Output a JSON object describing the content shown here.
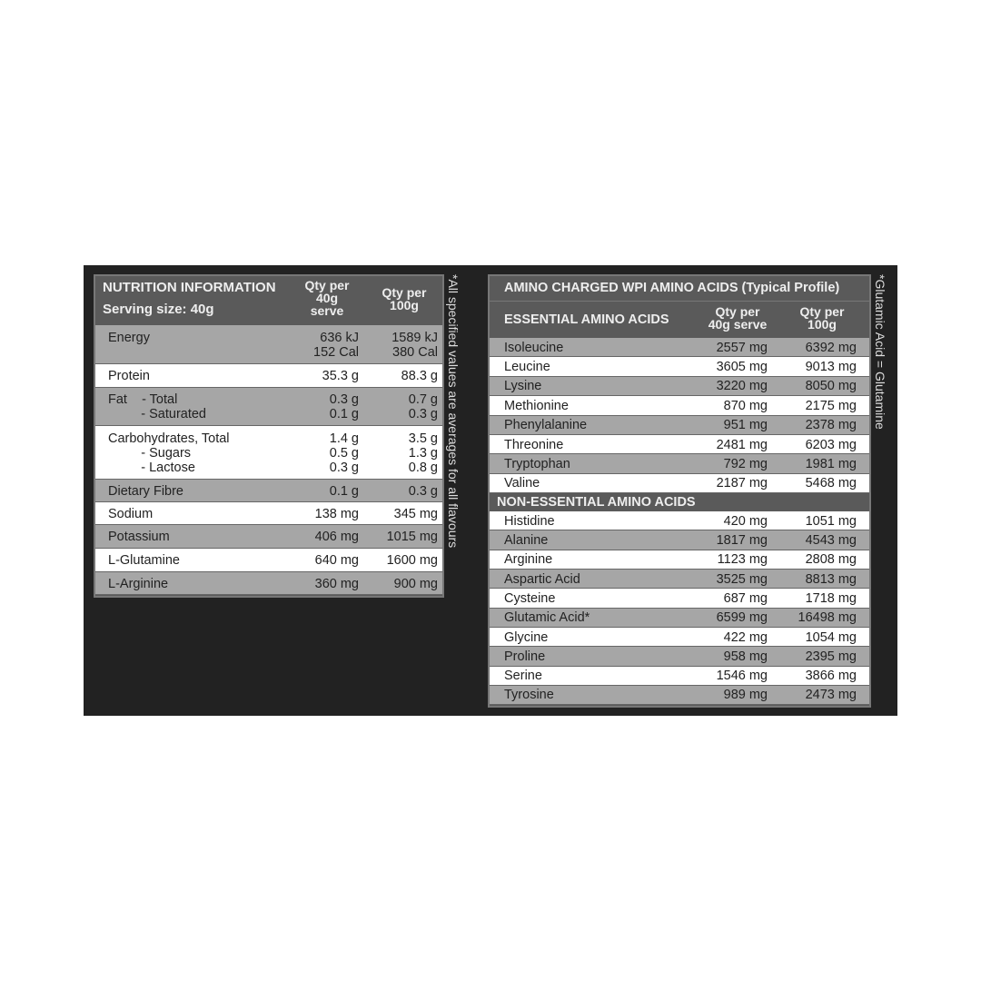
{
  "nutrition": {
    "title": "NUTRITION INFORMATION",
    "serving": "Serving size: 40g",
    "col1": "Qty per\n40g\nserve",
    "col2": "Qty per\n100g",
    "rows": [
      {
        "label": "Energy",
        "v1": "636 kJ\n152 Cal",
        "v2": "1589 kJ\n380 Cal"
      },
      {
        "label": "Protein",
        "v1": "35.3 g",
        "v2": "88.3 g"
      },
      {
        "label": "Fat    - Total\n         - Saturated",
        "v1": "0.3 g\n0.1 g",
        "v2": "0.7 g\n0.3 g"
      },
      {
        "label": "Carbohydrates, Total\n         - Sugars\n         - Lactose",
        "v1": "1.4 g\n0.5 g\n0.3 g",
        "v2": "3.5 g\n1.3 g\n0.8 g"
      },
      {
        "label": "Dietary Fibre",
        "v1": "0.1 g",
        "v2": "0.3 g"
      },
      {
        "label": "Sodium",
        "v1": "138 mg",
        "v2": "345 mg"
      },
      {
        "label": "Potassium",
        "v1": "406 mg",
        "v2": "1015 mg"
      },
      {
        "label": "L-Glutamine",
        "v1": "640 mg",
        "v2": "1600 mg"
      },
      {
        "label": "L-Arginine",
        "v1": "360 mg",
        "v2": "900 mg"
      }
    ],
    "note": "*All specified values are averages for all flavours"
  },
  "amino": {
    "title": "AMINO CHARGED WPI AMINO ACIDS (Typical Profile)",
    "essential_header": "ESSENTIAL AMINO ACIDS",
    "col1": "Qty per\n40g serve",
    "col2": "Qty per\n100g",
    "essential": [
      {
        "label": "Isoleucine",
        "v1": "2557 mg",
        "v2": "6392 mg"
      },
      {
        "label": "Leucine",
        "v1": "3605 mg",
        "v2": "9013 mg"
      },
      {
        "label": "Lysine",
        "v1": "3220 mg",
        "v2": "8050 mg"
      },
      {
        "label": "Methionine",
        "v1": "870 mg",
        "v2": "2175 mg"
      },
      {
        "label": "Phenylalanine",
        "v1": "951 mg",
        "v2": "2378 mg"
      },
      {
        "label": "Threonine",
        "v1": "2481 mg",
        "v2": "6203 mg"
      },
      {
        "label": "Tryptophan",
        "v1": "792 mg",
        "v2": "1981 mg"
      },
      {
        "label": "Valine",
        "v1": "2187 mg",
        "v2": "5468 mg"
      }
    ],
    "nonessential_header": "NON-ESSENTIAL AMINO ACIDS",
    "nonessential": [
      {
        "label": "Histidine",
        "v1": "420 mg",
        "v2": "1051 mg"
      },
      {
        "label": "Alanine",
        "v1": "1817 mg",
        "v2": "4543 mg"
      },
      {
        "label": "Arginine",
        "v1": "1123 mg",
        "v2": "2808 mg"
      },
      {
        "label": "Aspartic Acid",
        "v1": "3525 mg",
        "v2": "8813 mg"
      },
      {
        "label": "Cysteine",
        "v1": "687 mg",
        "v2": "1718 mg"
      },
      {
        "label": "Glutamic Acid*",
        "v1": "6599 mg",
        "v2": "16498 mg"
      },
      {
        "label": "Glycine",
        "v1": "422 mg",
        "v2": "1054 mg"
      },
      {
        "label": "Proline",
        "v1": "958 mg",
        "v2": "2395 mg"
      },
      {
        "label": "Serine",
        "v1": "1546 mg",
        "v2": "3866 mg"
      },
      {
        "label": "Tyrosine",
        "v1": "989 mg",
        "v2": "2473 mg"
      }
    ],
    "note": "*Glutamic Acid = Glutamine"
  }
}
